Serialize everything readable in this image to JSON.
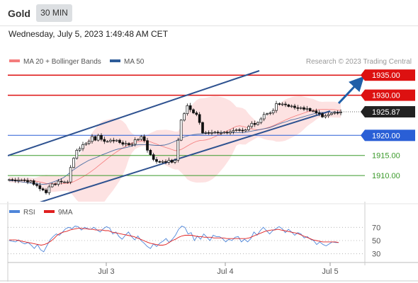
{
  "header": {
    "symbol": "Gold",
    "timeframe": "30 MIN",
    "datetime": "Wednesday, July 5, 2023 1:49:48 AM CET"
  },
  "colors": {
    "bollinger": "#f47c7c",
    "ma50": "#2e5c99",
    "up_candle": "#ffffff",
    "down_candle": "#111111",
    "resistance": "#dd1111",
    "support": "#2a5fd6",
    "target": "#3a9a2a",
    "channel": "#2e5290",
    "arrow": "#1f5fa8",
    "rsi": "#4f86d9",
    "rsi_ma": "#e02020",
    "current_tag": "#222222"
  },
  "chart_data": [
    {
      "type": "candlestick",
      "title": "",
      "legend": [
        {
          "label": "MA 20 + Bollinger Bands",
          "color": "#f47c7c"
        },
        {
          "label": "MA 50",
          "color": "#2e5c99"
        }
      ],
      "credit": "Research © 2023 Trading Central",
      "ylim": [
        1903.5,
        1937.5
      ],
      "price_levels": [
        {
          "value": 1935.0,
          "label": "1935.00",
          "kind": "resistance"
        },
        {
          "value": 1930.0,
          "label": "1930.00",
          "kind": "resistance"
        },
        {
          "value": 1925.87,
          "label": "1925.87",
          "kind": "current"
        },
        {
          "value": 1920.0,
          "label": "1920.00",
          "kind": "support"
        },
        {
          "value": 1915.0,
          "label": "1915.00",
          "kind": "target"
        },
        {
          "value": 1910.0,
          "label": "1910.00",
          "kind": "target"
        }
      ],
      "x_ticks": [
        "Jul 3",
        "Jul 4",
        "Jul 5"
      ],
      "close": [
        1909.0,
        1908.9,
        1908.7,
        1908.9,
        1908.9,
        1908.8,
        1908.4,
        1908.7,
        1907.8,
        1907.5,
        1906.7,
        1906.4,
        1905.7,
        1907.2,
        1907.9,
        1907.8,
        1908.6,
        1908.4,
        1908.4,
        1908.4,
        1912.0,
        1914.3,
        1916.3,
        1916.7,
        1917.7,
        1918.0,
        1918.5,
        1919.7,
        1918.8,
        1920.0,
        1919.0,
        1918.5,
        1918.5,
        1918.8,
        1918.6,
        1918.8,
        1918.2,
        1917.8,
        1918.0,
        1917.6,
        1917.8,
        1918.9,
        1919.0,
        1919.7,
        1918.7,
        1916.3,
        1915.2,
        1914.0,
        1913.5,
        1913.3,
        1913.5,
        1913.3,
        1913.8,
        1913.3,
        1913.8,
        1918.8,
        1923.8,
        1925.4,
        1927.4,
        1926.4,
        1925.6,
        1925.2,
        1923.2,
        1920.6,
        1920.7,
        1920.6,
        1920.7,
        1920.8,
        1920.6,
        1920.6,
        1920.8,
        1920.6,
        1920.9,
        1921.2,
        1921.4,
        1921.3,
        1921.1,
        1921.4,
        1922.2,
        1923.0,
        1922.7,
        1923.2,
        1924.1,
        1925.2,
        1925.4,
        1925.6,
        1926.2,
        1927.9,
        1927.7,
        1927.8,
        1927.6,
        1927.2,
        1927.3,
        1926.9,
        1926.7,
        1926.9,
        1926.5,
        1926.7,
        1926.1,
        1926.1,
        1925.6,
        1925.4,
        1924.6,
        1924.9,
        1925.2,
        1925.5,
        1925.7,
        1925.6,
        1925.8
      ],
      "ma50": [
        1908.7,
        1908.7,
        1908.6,
        1908.4,
        1908.3,
        1908.1,
        1908.0,
        1907.9,
        1907.8,
        1907.9,
        1908.2,
        1908.6,
        1909.0,
        1909.5,
        1910.3,
        1911.2,
        1911.9,
        1912.6,
        1913.2,
        1913.8,
        1914.2,
        1914.6,
        1915.1,
        1915.5,
        1915.9,
        1916.3,
        1916.6,
        1916.8,
        1917.0,
        1917.3,
        1917.6,
        1917.7,
        1917.7,
        1917.7,
        1917.6,
        1917.5,
        1917.5,
        1917.6,
        1917.9,
        1918.3,
        1918.8,
        1919.3,
        1919.7,
        1920.0,
        1920.2,
        1920.3,
        1920.4,
        1920.5,
        1920.6,
        1920.6,
        1920.7,
        1920.7,
        1920.7,
        1920.7,
        1920.7,
        1920.7,
        1920.7,
        1920.9,
        1921.1,
        1921.3,
        1921.5,
        1921.7,
        1921.9,
        1922.3,
        1922.7,
        1923.1,
        1923.4,
        1923.8,
        1924.0,
        1924.3,
        1924.6,
        1924.9,
        1925.2,
        1925.5,
        1925.7,
        1925.7,
        1925.8,
        1925.8,
        1925.8,
        1925.8
      ],
      "rsi_panel": {
        "legend": [
          {
            "label": "RSI",
            "color": "#4f86d9"
          },
          {
            "label": "9MA",
            "color": "#e02020"
          }
        ],
        "levels": [
          70,
          50,
          30
        ],
        "ylim": [
          20,
          80
        ],
        "rsi": [
          50,
          49,
          48,
          51,
          47,
          45,
          47,
          43,
          38,
          44,
          36,
          33,
          42,
          51,
          56,
          60,
          58,
          63,
          68,
          70,
          68,
          72,
          71,
          66,
          70,
          68,
          67,
          70,
          66,
          63,
          68,
          71,
          69,
          60,
          63,
          56,
          52,
          58,
          63,
          56,
          51,
          57,
          50,
          46,
          41,
          38,
          45,
          41,
          46,
          49,
          53,
          47,
          52,
          58,
          67,
          72,
          70,
          60,
          62,
          50,
          57,
          52,
          60,
          55,
          50,
          58,
          56,
          56,
          53,
          48,
          52,
          50,
          55,
          56,
          48,
          52,
          48,
          53,
          63,
          58,
          65,
          70,
          65,
          60,
          65,
          68,
          71,
          68,
          62,
          67,
          63,
          58,
          62,
          60,
          54,
          56,
          52,
          50,
          44,
          48,
          44,
          42,
          45,
          48,
          47,
          47
        ],
        "rsi_ma": [
          51,
          51,
          51,
          50,
          49,
          48,
          47,
          46,
          45,
          44,
          43,
          44,
          46,
          49,
          53,
          58,
          61,
          63,
          64,
          66,
          67,
          68,
          69,
          68,
          68,
          67,
          67,
          66,
          66,
          66,
          65,
          65,
          63,
          62,
          61,
          60,
          59,
          58,
          57,
          56,
          54,
          52,
          50,
          48,
          46,
          45,
          44,
          43,
          43,
          44,
          47,
          50,
          52,
          55,
          57,
          58,
          58,
          58,
          57,
          56,
          56,
          55,
          55,
          55,
          54,
          54,
          54,
          54,
          53,
          53,
          53,
          53,
          53,
          53,
          53,
          54,
          56,
          58,
          60,
          62,
          64,
          65,
          66,
          66,
          67,
          66,
          65,
          64,
          63,
          62,
          61,
          59,
          57,
          55,
          53,
          51,
          50,
          49,
          48,
          48,
          48,
          48,
          48,
          47
        ]
      }
    }
  ]
}
